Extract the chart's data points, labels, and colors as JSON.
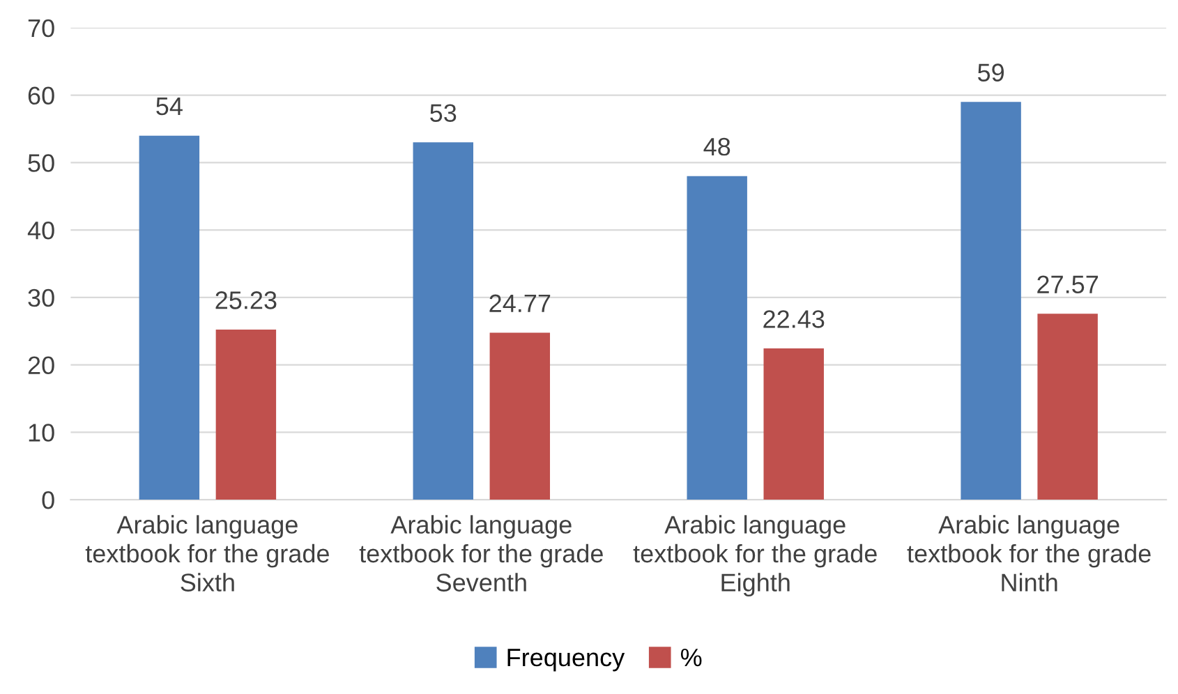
{
  "chart_data": {
    "type": "bar",
    "categories": [
      "Arabic language textbook for the grade Sixth",
      "Arabic language textbook for the grade Seventh",
      "Arabic language textbook for the grade Eighth",
      "Arabic language textbook for the grade Ninth"
    ],
    "series": [
      {
        "name": "Frequency",
        "color": "#4f81bd",
        "values": [
          54,
          53,
          48,
          59
        ]
      },
      {
        "name": "%",
        "color": "#c0504d",
        "values": [
          25.23,
          24.77,
          22.43,
          27.57
        ]
      }
    ],
    "ylim": [
      0,
      70
    ],
    "yticks": [
      0,
      10,
      20,
      30,
      40,
      50,
      60,
      70
    ],
    "grid": "y",
    "legend": "bottom",
    "data_labels": true
  }
}
